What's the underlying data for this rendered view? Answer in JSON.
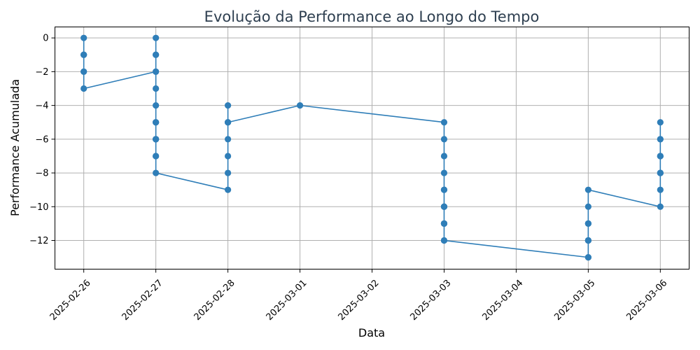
{
  "chart_data": {
    "type": "line",
    "title": "Evolução da Performance ao Longo do Tempo",
    "xlabel": "Data",
    "ylabel": "Performance Acumulada",
    "x_ticks": [
      "2025-02-26",
      "2025-02-27",
      "2025-02-28",
      "2025-03-01",
      "2025-03-02",
      "2025-03-03",
      "2025-03-04",
      "2025-03-05",
      "2025-03-06"
    ],
    "y_ticks": [
      0,
      -2,
      -4,
      -6,
      -8,
      -10,
      -12
    ],
    "xlim": [
      "2025-02-25T14:24",
      "2025-03-06T09:36"
    ],
    "ylim": [
      -13.7,
      0.65
    ],
    "grid": true,
    "color": "#2f7eb8",
    "series": [
      {
        "x": [
          "2025-02-26",
          "2025-02-26",
          "2025-02-26",
          "2025-02-26",
          "2025-02-26",
          "2025-02-26",
          "2025-02-26",
          "2025-02-27",
          "2025-02-27",
          "2025-02-27",
          "2025-02-27",
          "2025-02-27",
          "2025-02-27",
          "2025-02-27",
          "2025-02-27",
          "2025-02-27",
          "2025-02-27",
          "2025-02-27",
          "2025-02-27",
          "2025-02-27",
          "2025-02-27",
          "2025-02-27",
          "2025-02-27",
          "2025-02-27",
          "2025-02-28",
          "2025-02-28",
          "2025-02-28",
          "2025-02-28",
          "2025-02-28",
          "2025-02-28",
          "2025-02-28",
          "2025-02-28",
          "2025-03-01",
          "2025-03-03",
          "2025-03-03",
          "2025-03-03",
          "2025-03-03",
          "2025-03-03",
          "2025-03-03",
          "2025-03-03",
          "2025-03-03",
          "2025-03-03",
          "2025-03-03",
          "2025-03-03",
          "2025-03-03",
          "2025-03-03",
          "2025-03-03",
          "2025-03-03",
          "2025-03-03",
          "2025-03-05",
          "2025-03-05",
          "2025-03-05",
          "2025-03-05",
          "2025-03-05",
          "2025-03-05",
          "2025-03-05",
          "2025-03-05",
          "2025-03-05",
          "2025-03-05",
          "2025-03-05",
          "2025-03-06",
          "2025-03-06",
          "2025-03-06",
          "2025-03-06",
          "2025-03-06",
          "2025-03-06",
          "2025-03-06",
          "2025-03-06",
          "2025-03-06",
          "2025-03-06",
          "2025-03-06"
        ],
        "y": [
          0,
          -1,
          -2,
          -1,
          -2,
          -1,
          -3,
          -2,
          -1,
          0,
          -1,
          -2,
          -3,
          -4,
          -5,
          -6,
          -5,
          -6,
          -7,
          -6,
          -5,
          -6,
          -7,
          -8,
          -9,
          -8,
          -7,
          -6,
          -5,
          -4,
          -5,
          -5,
          -4,
          -5,
          -6,
          -7,
          -8,
          -9,
          -10,
          -11,
          -10,
          -11,
          -12,
          -11,
          -10,
          -9,
          -10,
          -11,
          -12,
          -13,
          -12,
          -11,
          -10,
          -11,
          -12,
          -11,
          -12,
          -13,
          -12,
          -9,
          -10,
          -9,
          -8,
          -7,
          -6,
          -5,
          -6,
          -7,
          -8,
          -7,
          -8
        ]
      }
    ]
  }
}
